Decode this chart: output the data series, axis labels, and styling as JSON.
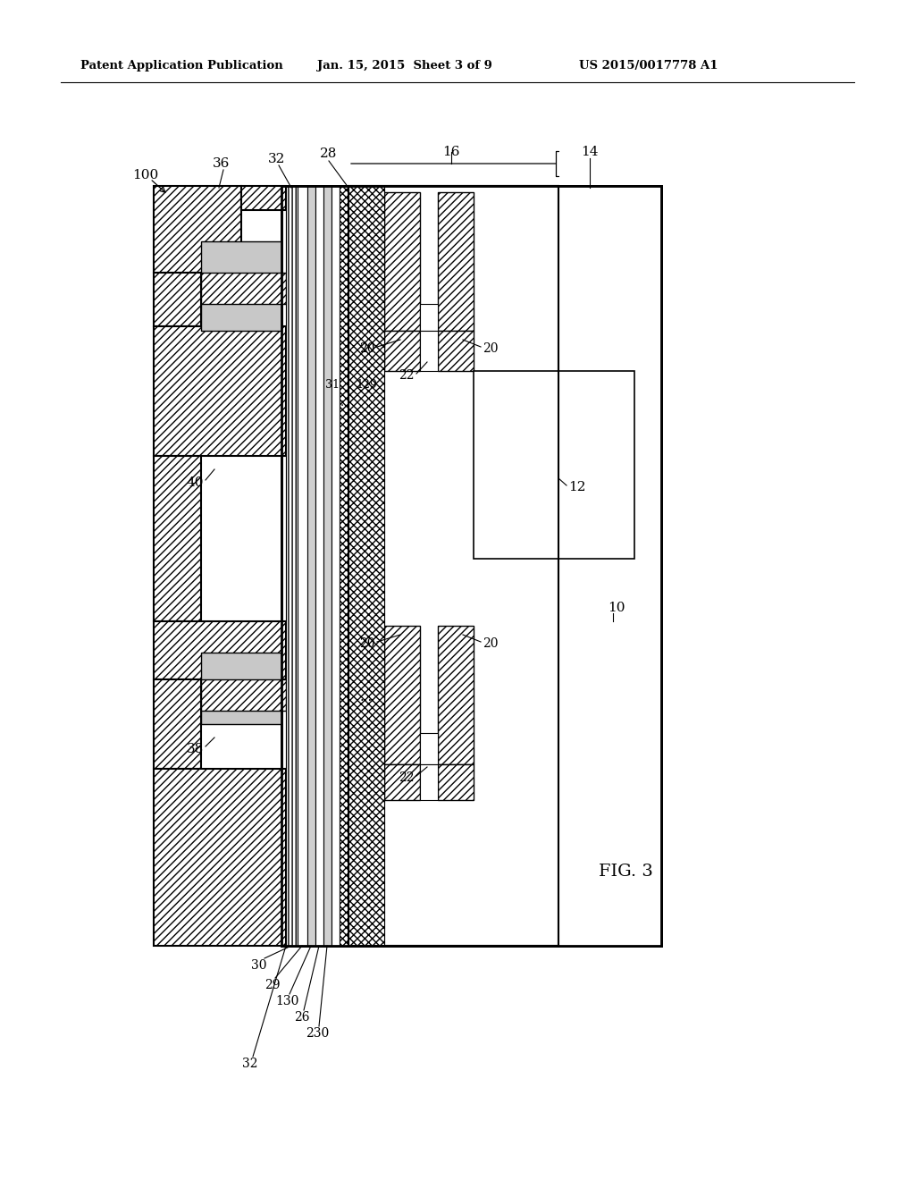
{
  "bg_color": "#ffffff",
  "header_left": "Patent Application Publication",
  "header_mid": "Jan. 15, 2015  Sheet 3 of 9",
  "header_right": "US 2015/0017778 A1",
  "fig_label": "FIG. 3",
  "ref_100": "100",
  "ref_40": "40",
  "ref_38": "38",
  "ref_10": "10",
  "ref_12": "12",
  "ref_14": "14",
  "ref_16": "16",
  "ref_20": "20",
  "ref_22": "22",
  "ref_26": "26",
  "ref_28": "28",
  "ref_29": "29",
  "ref_30": "30",
  "ref_31": "31",
  "ref_32": "32",
  "ref_36": "36",
  "ref_129": "129",
  "ref_130": "130",
  "ref_230": "230"
}
